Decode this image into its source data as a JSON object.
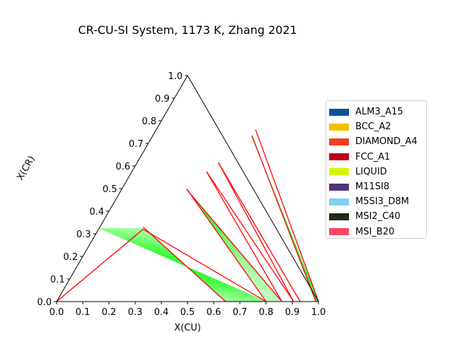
{
  "chart_data": {
    "type": "ternary",
    "title": "CR-CU-SI System, 1173 K, Zhang 2021",
    "xlabel": "X(CU)",
    "ylabel": "X(CR)",
    "ticks": [
      "0.0",
      "0.1",
      "0.2",
      "0.3",
      "0.4",
      "0.5",
      "0.6",
      "0.7",
      "0.8",
      "0.9",
      "1.0"
    ],
    "xlim": [
      0,
      1
    ],
    "ylim": [
      0,
      1
    ],
    "legend": {
      "placement": "right",
      "entries": [
        {
          "name": "ALM3_A15",
          "color": "#0b5394"
        },
        {
          "name": "BCC_A2",
          "color": "#f0c000"
        },
        {
          "name": "DIAMOND_A4",
          "color": "#f04020"
        },
        {
          "name": "FCC_A1",
          "color": "#c0001e"
        },
        {
          "name": "LIQUID",
          "color": "#d4f500"
        },
        {
          "name": "M11SI8",
          "color": "#52367a"
        },
        {
          "name": "M5SI3_D8M",
          "color": "#80d0f0"
        },
        {
          "name": "MSI2_C40",
          "color": "#1f2a14"
        },
        {
          "name": "MSI_B20",
          "color": "#ff4466"
        }
      ]
    },
    "tie_line_color": "#33ff33",
    "boundary_color": "#ff0000",
    "tie_line_regions": [
      {
        "a_start": [
          0.172,
          0.325
        ],
        "a_end": [
          0.0,
          0.325
        ],
        "b_start": [
          0.645,
          0.0
        ],
        "b_end": [
          0.8,
          0.0
        ],
        "count": 28
      },
      {
        "a_start": [
          0.248,
          0.498
        ],
        "a_end": [
          0.25,
          0.495
        ],
        "b_start": [
          0.8,
          0.0
        ],
        "b_end": [
          0.86,
          0.0
        ],
        "count": 10
      },
      {
        "a_start": [
          0.378,
          0.735
        ],
        "a_end": [
          0.38,
          0.73
        ],
        "b_start": [
          0.99,
          0.0
        ],
        "b_end": [
          1.0,
          0.0
        ],
        "count": 16
      }
    ],
    "red_lines": [
      {
        "from": [
          0.0,
          0.0
        ],
        "to": [
          0.17,
          0.32
        ]
      },
      {
        "from": [
          0.17,
          0.32
        ],
        "to": [
          0.8,
          0.0
        ]
      },
      {
        "from": [
          0.165,
          0.33
        ],
        "to": [
          0.645,
          0.0
        ]
      },
      {
        "from": [
          0.248,
          0.498
        ],
        "to": [
          0.8,
          0.0
        ]
      },
      {
        "from": [
          0.25,
          0.495
        ],
        "to": [
          0.86,
          0.0
        ]
      },
      {
        "from": [
          0.285,
          0.575
        ],
        "to": [
          0.86,
          0.0
        ]
      },
      {
        "from": [
          0.285,
          0.575
        ],
        "to": [
          0.905,
          0.0
        ]
      },
      {
        "from": [
          0.31,
          0.615
        ],
        "to": [
          0.905,
          0.0
        ]
      },
      {
        "from": [
          0.31,
          0.615
        ],
        "to": [
          0.93,
          0.0
        ]
      },
      {
        "from": [
          0.378,
          0.735
        ],
        "to": [
          0.99,
          0.0
        ]
      },
      {
        "from": [
          0.38,
          0.76
        ],
        "to": [
          1.0,
          0.0
        ]
      }
    ]
  }
}
